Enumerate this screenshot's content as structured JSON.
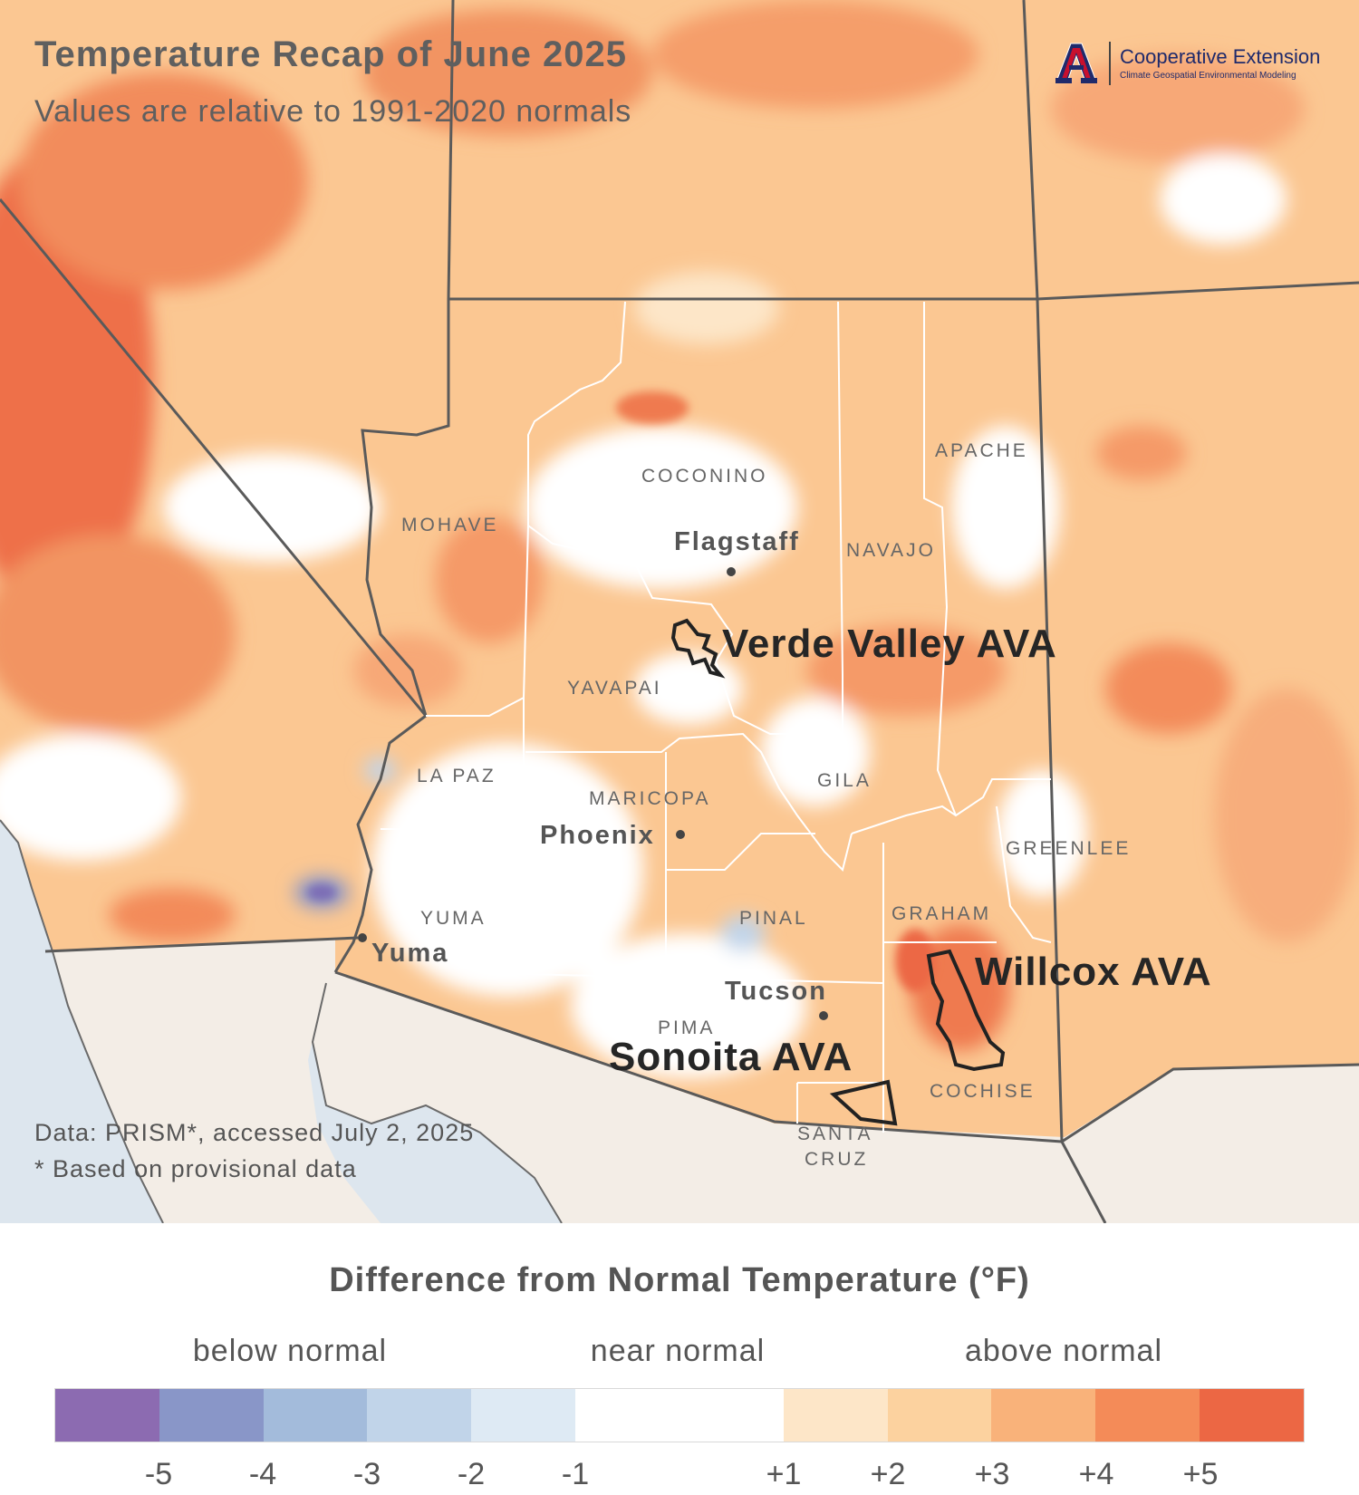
{
  "header": {
    "title": "Temperature Recap of June 2025",
    "subtitle": "Values are relative to 1991-2020 normals"
  },
  "logo": {
    "title": "Cooperative Extension",
    "subtitle": "Climate Geospatial Environmental Modeling",
    "mark": "university-a-logo"
  },
  "map": {
    "counties": [
      "COCONINO",
      "APACHE",
      "MOHAVE",
      "NAVAJO",
      "YAVAPAI",
      "LA PAZ",
      "MARICOPA",
      "GILA",
      "GREENLEE",
      "YUMA",
      "PINAL",
      "GRAHAM",
      "PIMA",
      "COCHISE",
      "SANTA",
      "CRUZ"
    ],
    "cities": [
      "Flagstaff",
      "Phoenix",
      "Yuma",
      "Tucson"
    ],
    "avas": [
      "Verde Valley AVA",
      "Willcox AVA",
      "Sonoita AVA"
    ],
    "colors": {
      "land_outside": "#f3ede6",
      "water": "#dde6ee",
      "boundary": "#5a5a5a",
      "county_line": "#ffffff",
      "ava_outline": "#222222"
    }
  },
  "credits": {
    "source": "Data: PRISM*, accessed July 2, 2025",
    "note": "* Based on provisional data"
  },
  "legend": {
    "title": "Difference from Normal Temperature (°F)",
    "categories": [
      "below normal",
      "near normal",
      "above normal"
    ],
    "ticks": [
      "-5",
      "-4",
      "-3",
      "-2",
      "-1",
      "+1",
      "+2",
      "+3",
      "+4",
      "+5"
    ],
    "bins": [
      {
        "from": -6,
        "to": -5,
        "color": "#8c6bb1"
      },
      {
        "from": -5,
        "to": -4,
        "color": "#8996c8"
      },
      {
        "from": -4,
        "to": -3,
        "color": "#a3bbdb"
      },
      {
        "from": -3,
        "to": -2,
        "color": "#c1d4e9"
      },
      {
        "from": -2,
        "to": -1,
        "color": "#deeaf4"
      },
      {
        "from": -1,
        "to": 1,
        "color": "#ffffff"
      },
      {
        "from": 1,
        "to": 2,
        "color": "#fde6c8"
      },
      {
        "from": 2,
        "to": 3,
        "color": "#fcd29f"
      },
      {
        "from": 3,
        "to": 4,
        "color": "#f9b27a"
      },
      {
        "from": 4,
        "to": 5,
        "color": "#f48b58"
      },
      {
        "from": 5,
        "to": 6,
        "color": "#ec6744"
      }
    ]
  }
}
